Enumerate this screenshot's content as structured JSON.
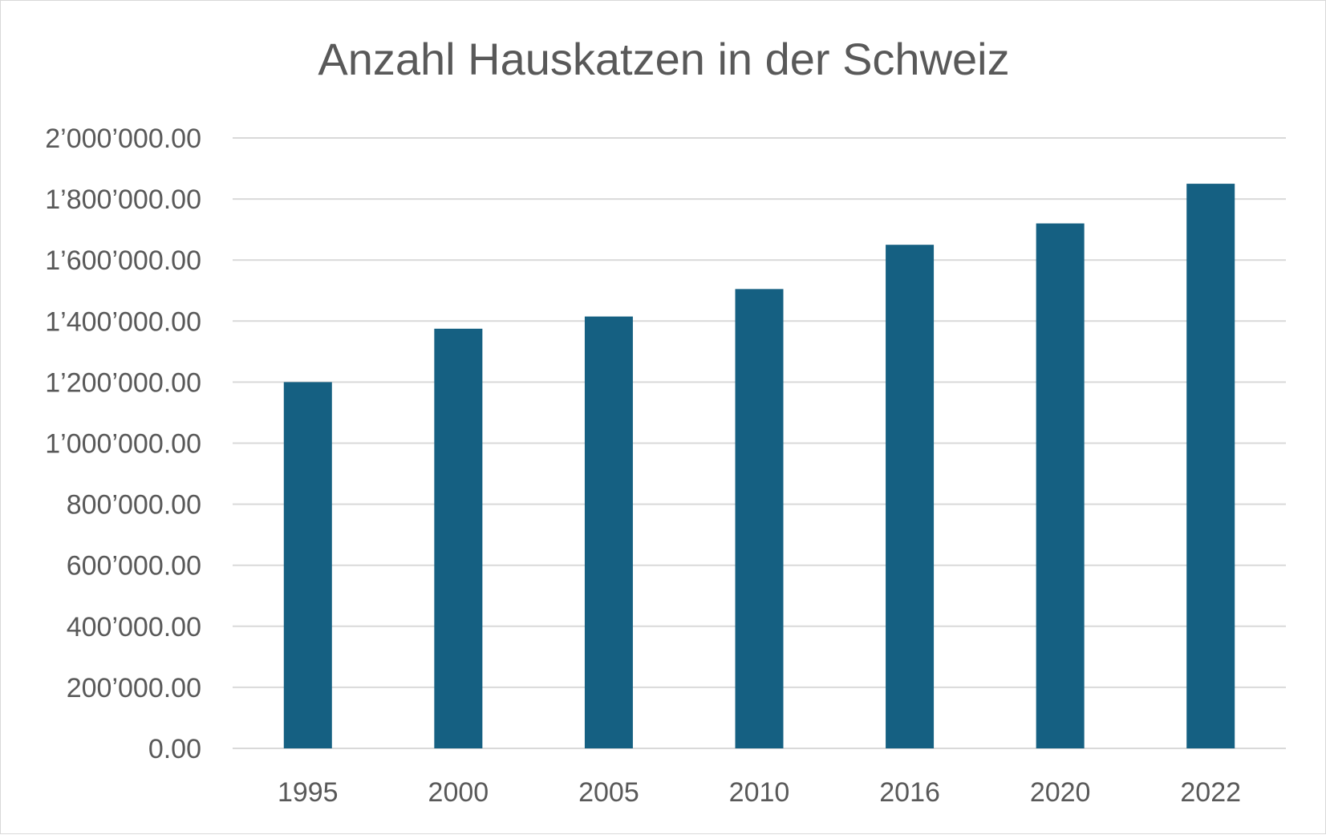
{
  "chart_data": {
    "type": "bar",
    "title": "Anzahl Hauskatzen in der Schweiz",
    "xlabel": "",
    "ylabel": "",
    "categories": [
      "1995",
      "2000",
      "2005",
      "2010",
      "2016",
      "2020",
      "2022"
    ],
    "values": [
      1200000,
      1375000,
      1415000,
      1505000,
      1650000,
      1720000,
      1850000
    ],
    "ylim": [
      0,
      2000000
    ],
    "yticks": [
      0,
      200000,
      400000,
      600000,
      800000,
      1000000,
      1200000,
      1400000,
      1600000,
      1800000,
      2000000
    ],
    "ytick_labels": [
      "0.00",
      "200’000.00",
      "400’000.00",
      "600’000.00",
      "800’000.00",
      "1’000’000.00",
      "1’200’000.00",
      "1’400’000.00",
      "1’600’000.00",
      "1’800’000.00",
      "2’000’000.00"
    ],
    "grid": true,
    "legend": "none",
    "bar_color": "#156082",
    "grid_color": "#d9d9d9",
    "text_color": "#595959"
  }
}
